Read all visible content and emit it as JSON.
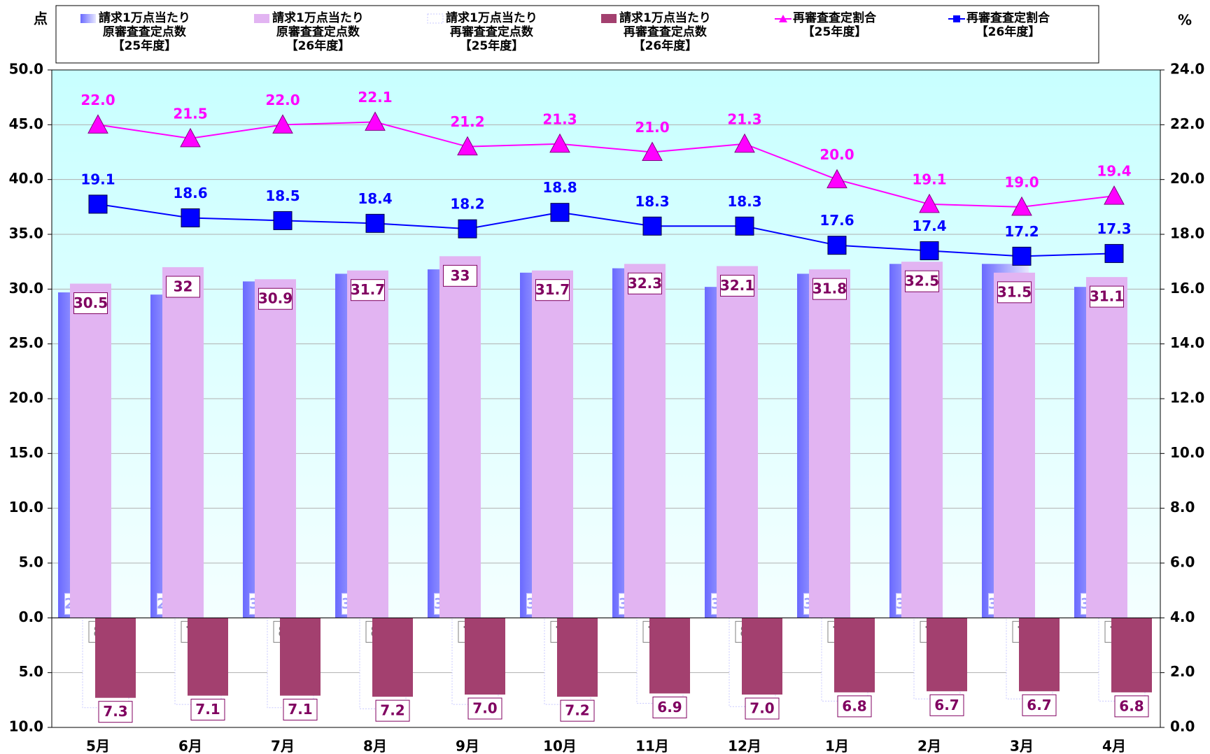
{
  "chart_data": {
    "type": "bar",
    "y_unit": "点",
    "y2_unit": "%",
    "categories": [
      "5月",
      "6月",
      "7月",
      "8月",
      "9月",
      "10月",
      "11月",
      "12月",
      "1月",
      "2月",
      "3月",
      "4月"
    ],
    "ylim": [
      -10,
      50
    ],
    "yticks": [
      {
        "value": -10,
        "label": "10.0"
      },
      {
        "value": -5,
        "label": "5.0"
      },
      {
        "value": 0,
        "label": "0.0"
      },
      {
        "value": 5,
        "label": "5.0"
      },
      {
        "value": 10,
        "label": "10.0"
      },
      {
        "value": 15,
        "label": "15.0"
      },
      {
        "value": 20,
        "label": "20.0"
      },
      {
        "value": 25,
        "label": "25.0"
      },
      {
        "value": 30,
        "label": "30.0"
      },
      {
        "value": 35,
        "label": "35.0"
      },
      {
        "value": 40,
        "label": "40.0"
      },
      {
        "value": 45,
        "label": "45.0"
      },
      {
        "value": 50,
        "label": "50.0"
      }
    ],
    "y2lim": [
      0,
      24
    ],
    "y2ticks": [
      {
        "value": 0,
        "label": "0.0"
      },
      {
        "value": 2,
        "label": "2.0"
      },
      {
        "value": 4,
        "label": "4.0"
      },
      {
        "value": 6,
        "label": "6.0"
      },
      {
        "value": 8,
        "label": "8.0"
      },
      {
        "value": 10,
        "label": "10.0"
      },
      {
        "value": 12,
        "label": "12.0"
      },
      {
        "value": 14,
        "label": "14.0"
      },
      {
        "value": 16,
        "label": "16.0"
      },
      {
        "value": 18,
        "label": "18.0"
      },
      {
        "value": 20,
        "label": "20.0"
      },
      {
        "value": 22,
        "label": "22.0"
      },
      {
        "value": 24,
        "label": "24.0"
      }
    ],
    "grid": true,
    "series": [
      {
        "name": "請求1万点当たり\n原審査査定点数\n【25年度】",
        "type": "bar",
        "color": "#8080ff",
        "values": [
          29.7,
          29.5,
          30.7,
          31.4,
          31.8,
          31.5,
          31.9,
          30.2,
          31.4,
          32.3,
          32.3,
          30.2
        ]
      },
      {
        "name": "請求1万点当たり\n原審査査定点数\n【26年度】",
        "type": "bar",
        "color": "#e2b4f2",
        "values": [
          30.5,
          32.0,
          30.9,
          31.7,
          33.0,
          31.7,
          32.3,
          32.1,
          31.8,
          32.5,
          31.5,
          31.1
        ]
      },
      {
        "name": "請求1万点当たり\n再審査査定点数\n【25年度】",
        "type": "bar",
        "color": "#c8c8ff",
        "values": [
          -8.2,
          -7.9,
          -8.2,
          -8.3,
          -7.9,
          -7.9,
          -7.8,
          -8.1,
          -7.6,
          -7.4,
          -7.4,
          -7.6
        ],
        "value_labels": [
          "8.2",
          "7.9",
          "8.2",
          "8.3",
          "7.9",
          "7.9",
          "7.8",
          "8.1",
          "7.6",
          "7.4",
          "7.4",
          "7.6"
        ]
      },
      {
        "name": "請求1万点当たり\n再審査査定点数\n【26年度】",
        "type": "bar",
        "color": "#a3406f",
        "values": [
          -7.3,
          -7.1,
          -7.1,
          -7.2,
          -7.0,
          -7.2,
          -6.9,
          -7.0,
          -6.8,
          -6.7,
          -6.7,
          -6.8
        ],
        "value_labels": [
          "7.3",
          "7.1",
          "7.1",
          "7.2",
          "7.0",
          "7.2",
          "6.9",
          "7.0",
          "6.8",
          "6.7",
          "6.7",
          "6.8"
        ]
      },
      {
        "name": "再審査査定割合\n【25年度】",
        "type": "line",
        "marker": "triangle",
        "axis": "y2",
        "color": "#ff00ff",
        "values": [
          22.0,
          21.5,
          22.0,
          22.1,
          21.2,
          21.3,
          21.0,
          21.3,
          20.0,
          19.1,
          19.0,
          19.4
        ],
        "value_labels": [
          "22.0",
          "21.5",
          "22.0",
          "22.1",
          "21.2",
          "21.3",
          "21.0",
          "21.3",
          "20.0",
          "19.1",
          "19.0",
          "19.4"
        ]
      },
      {
        "name": "再審査査定割合\n【26年度】",
        "type": "line",
        "marker": "square",
        "axis": "y2",
        "color": "#0000ff",
        "values": [
          19.1,
          18.6,
          18.5,
          18.4,
          18.2,
          18.8,
          18.3,
          18.3,
          17.6,
          17.4,
          17.2,
          17.3
        ],
        "value_labels": [
          "19.1",
          "18.6",
          "18.5",
          "18.4",
          "18.2",
          "18.8",
          "18.3",
          "18.3",
          "17.6",
          "17.4",
          "17.2",
          "17.3"
        ]
      }
    ]
  }
}
